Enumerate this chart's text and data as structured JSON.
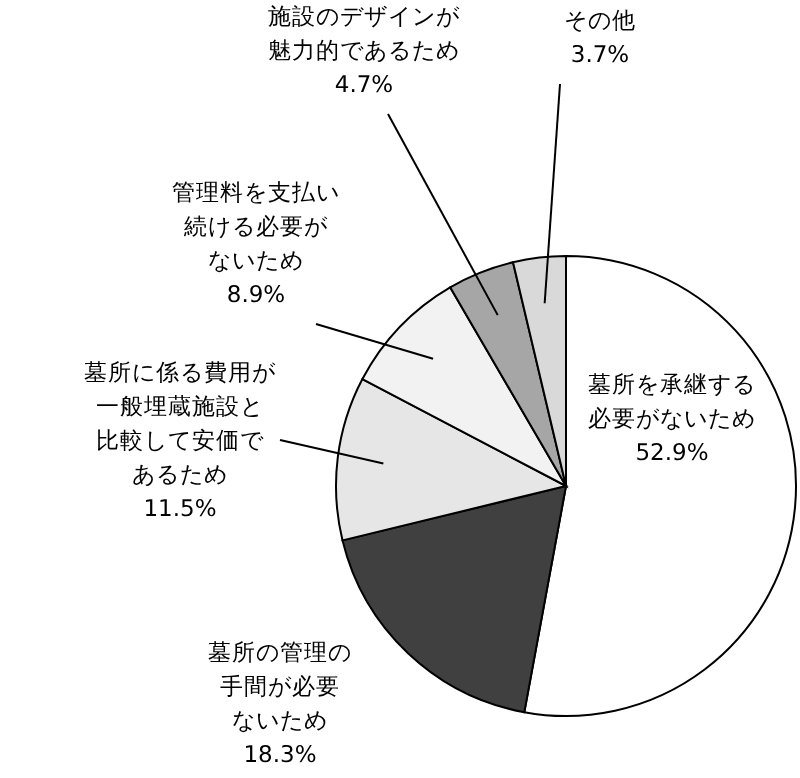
{
  "chart_data": {
    "type": "pie",
    "categories": [
      "墓所を承継する必要がないため",
      "墓所の管理の手間が必要ないため",
      "墓所に係る費用が一般埋蔵施設と比較して安価であるため",
      "管理料を支払い続ける必要がないため",
      "施設のデザインが魅力的であるため",
      "その他"
    ],
    "values": [
      52.9,
      18.3,
      11.5,
      8.9,
      4.7,
      3.7
    ],
    "value_labels": [
      "52.9%",
      "18.3%",
      "11.5%",
      "8.9%",
      "4.7%",
      "3.7%"
    ],
    "colors": [
      "#ffffff",
      "#404040",
      "#e6e6e6",
      "#f2f2f2",
      "#a6a6a6",
      "#d9d9d9"
    ]
  }
}
